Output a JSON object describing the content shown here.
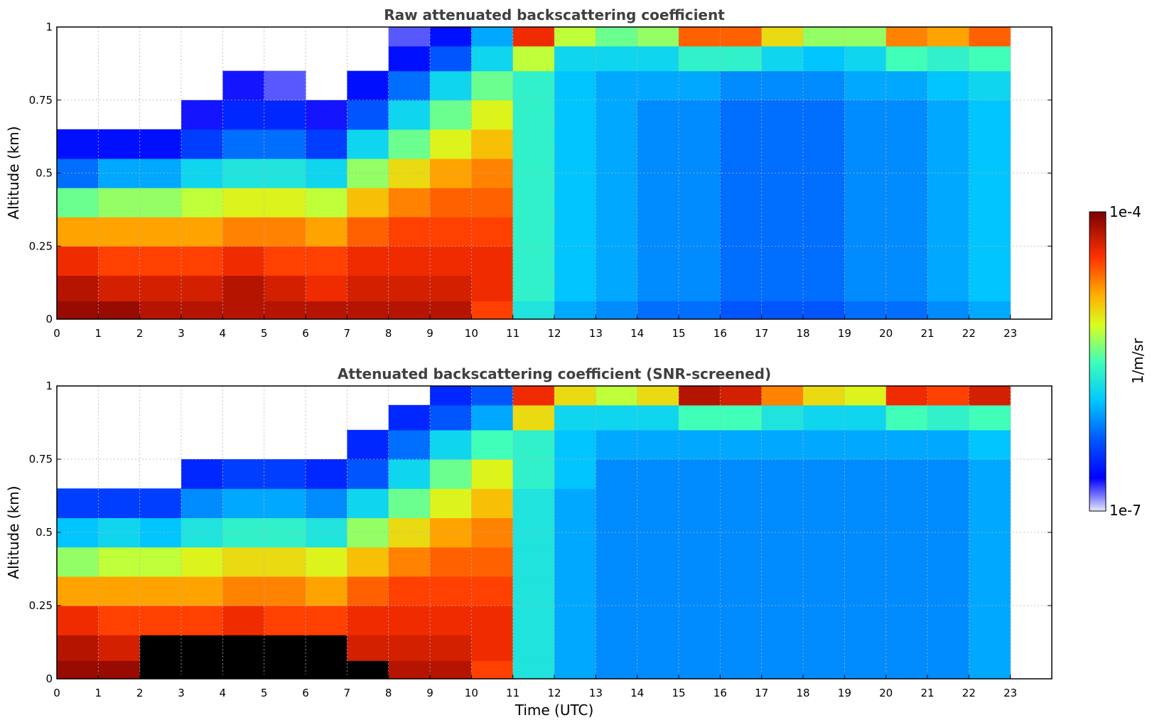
{
  "chart_data": [
    {
      "type": "heatmap",
      "title": "Raw attenuated backscattering coefficient",
      "xlabel": "",
      "ylabel": "Altitude (km)",
      "xlim": [
        0,
        24
      ],
      "ylim": [
        0,
        1
      ],
      "x_ticks": [
        "0",
        "1",
        "2",
        "3",
        "4",
        "5",
        "6",
        "7",
        "8",
        "9",
        "10",
        "11",
        "12",
        "13",
        "14",
        "15",
        "16",
        "17",
        "18",
        "19",
        "20",
        "21",
        "22",
        "23"
      ],
      "y_ticks": [
        "0",
        "0.25",
        "0.5",
        "0.75",
        "1"
      ],
      "grid": true,
      "data_extent_hours": [
        0,
        23
      ],
      "color_scale": "log",
      "color_range": [
        1e-07,
        0.0001
      ],
      "data_rows_altitude_km": [
        0.025,
        0.1,
        0.2,
        0.3,
        0.4,
        0.5,
        0.6,
        0.7,
        0.8,
        0.9,
        0.97
      ],
      "data_cols_hour": [
        0.5,
        1.5,
        2.5,
        3.5,
        4.5,
        5.5,
        6.5,
        7.5,
        8.5,
        9.5,
        10.5,
        11.5,
        12.5,
        13.5,
        14.5,
        15.5,
        16.5,
        17.5,
        18.5,
        19.5,
        20.5,
        21.5,
        22.5
      ],
      "log10_values": [
        [
          -4.1,
          -4.1,
          -4.2,
          -4.2,
          -4.2,
          -4.2,
          -4.2,
          -4.2,
          -4.2,
          -4.2,
          -4.5,
          -5.7,
          -6.0,
          -6.1,
          -6.2,
          -6.2,
          -6.3,
          -6.3,
          -6.3,
          -6.2,
          -6.2,
          -6.1,
          -6.0
        ],
        [
          -4.2,
          -4.3,
          -4.3,
          -4.3,
          -4.2,
          -4.3,
          -4.4,
          -4.3,
          -4.3,
          -4.3,
          -4.4,
          -5.6,
          -5.9,
          -6.0,
          -6.1,
          -6.1,
          -6.2,
          -6.2,
          -6.2,
          -6.1,
          -6.1,
          -6.0,
          -5.9
        ],
        [
          -4.4,
          -4.5,
          -4.5,
          -4.5,
          -4.4,
          -4.5,
          -4.5,
          -4.4,
          -4.4,
          -4.4,
          -4.4,
          -5.6,
          -5.9,
          -6.0,
          -6.1,
          -6.1,
          -6.2,
          -6.2,
          -6.2,
          -6.1,
          -6.1,
          -6.0,
          -5.9
        ],
        [
          -4.8,
          -4.8,
          -4.8,
          -4.8,
          -4.7,
          -4.7,
          -4.8,
          -4.6,
          -4.5,
          -4.5,
          -4.5,
          -5.6,
          -5.9,
          -6.0,
          -6.1,
          -6.1,
          -6.2,
          -6.2,
          -6.2,
          -6.1,
          -6.1,
          -6.0,
          -5.9
        ],
        [
          -5.4,
          -5.3,
          -5.3,
          -5.2,
          -5.1,
          -5.1,
          -5.2,
          -4.9,
          -4.7,
          -4.6,
          -4.6,
          -5.6,
          -5.9,
          -6.0,
          -6.1,
          -6.1,
          -6.2,
          -6.2,
          -6.2,
          -6.1,
          -6.1,
          -6.0,
          -5.9
        ],
        [
          -6.2,
          -6.0,
          -6.0,
          -5.8,
          -5.7,
          -5.7,
          -5.8,
          -5.3,
          -5.0,
          -4.8,
          -4.7,
          -5.6,
          -5.9,
          -6.0,
          -6.1,
          -6.1,
          -6.2,
          -6.2,
          -6.2,
          -6.1,
          -6.1,
          -6.0,
          -5.9
        ],
        [
          -6.6,
          -6.6,
          -6.6,
          -6.4,
          -6.2,
          -6.2,
          -6.4,
          -5.8,
          -5.4,
          -5.1,
          -4.9,
          -5.6,
          -5.9,
          -6.0,
          -6.1,
          -6.1,
          -6.2,
          -6.2,
          -6.2,
          -6.1,
          -6.1,
          -6.0,
          -5.9
        ],
        [
          null,
          null,
          null,
          -6.7,
          -6.5,
          -6.5,
          -6.7,
          -6.3,
          -5.8,
          -5.4,
          -5.1,
          -5.6,
          -5.9,
          -6.0,
          -6.1,
          -6.1,
          -6.2,
          -6.2,
          -6.2,
          -6.1,
          -6.1,
          -6.0,
          -5.9
        ],
        [
          null,
          null,
          null,
          null,
          -6.7,
          -6.8,
          null,
          -6.6,
          -6.2,
          -5.8,
          -5.4,
          -5.6,
          -5.9,
          -6.0,
          -6.0,
          -6.0,
          -6.1,
          -6.1,
          -6.1,
          -6.0,
          -6.0,
          -5.9,
          -5.8
        ],
        [
          null,
          null,
          null,
          null,
          null,
          null,
          null,
          null,
          -6.6,
          -6.3,
          -5.8,
          -5.2,
          -5.8,
          -5.8,
          -5.8,
          -5.6,
          -5.6,
          -5.8,
          -5.9,
          -5.8,
          -5.5,
          -5.6,
          -5.5
        ],
        [
          null,
          null,
          null,
          null,
          null,
          null,
          null,
          null,
          -6.8,
          -6.6,
          -6.0,
          -4.4,
          -5.2,
          -5.4,
          -5.3,
          -4.6,
          -4.6,
          -5.0,
          -5.3,
          -5.3,
          -4.7,
          -4.8,
          -4.6
        ]
      ]
    },
    {
      "type": "heatmap",
      "title": "Attenuated backscattering coefficient (SNR-screened)",
      "xlabel": "Time (UTC)",
      "ylabel": "Altitude (km)",
      "xlim": [
        0,
        24
      ],
      "ylim": [
        0,
        1
      ],
      "x_ticks": [
        "0",
        "1",
        "2",
        "3",
        "4",
        "5",
        "6",
        "7",
        "8",
        "9",
        "10",
        "11",
        "12",
        "13",
        "14",
        "15",
        "16",
        "17",
        "18",
        "19",
        "20",
        "21",
        "22",
        "23"
      ],
      "y_ticks": [
        "0",
        "0.25",
        "0.5",
        "0.75",
        "1"
      ],
      "grid": true,
      "data_extent_hours": [
        0,
        23
      ],
      "color_scale": "log",
      "color_range": [
        1e-07,
        0.0001
      ],
      "data_rows_altitude_km": [
        0.025,
        0.1,
        0.2,
        0.3,
        0.4,
        0.5,
        0.6,
        0.7,
        0.8,
        0.9,
        0.97
      ],
      "data_cols_hour": [
        0.5,
        1.5,
        2.5,
        3.5,
        4.5,
        5.5,
        6.5,
        7.5,
        8.5,
        9.5,
        10.5,
        11.5,
        12.5,
        13.5,
        14.5,
        15.5,
        16.5,
        17.5,
        18.5,
        19.5,
        20.5,
        21.5,
        22.5
      ],
      "log10_values": [
        [
          -4.1,
          -4.1,
          "masked",
          "masked",
          "masked",
          "masked",
          "masked",
          "masked",
          -4.2,
          -4.2,
          -4.5,
          -5.7,
          -6.0,
          -6.1,
          -6.1,
          -6.1,
          -6.1,
          -6.1,
          -6.1,
          -6.1,
          -6.1,
          -6.1,
          -6.0
        ],
        [
          -4.2,
          -4.3,
          "masked",
          "masked",
          "masked",
          "masked",
          "masked",
          -4.3,
          -4.3,
          -4.3,
          -4.4,
          -5.7,
          -6.0,
          -6.1,
          -6.1,
          -6.1,
          -6.1,
          -6.1,
          -6.1,
          -6.1,
          -6.1,
          -6.1,
          -6.0
        ],
        [
          -4.4,
          -4.5,
          -4.5,
          -4.5,
          -4.4,
          -4.5,
          -4.5,
          -4.4,
          -4.4,
          -4.4,
          -4.4,
          -5.7,
          -6.0,
          -6.1,
          -6.1,
          -6.1,
          -6.1,
          -6.1,
          -6.1,
          -6.1,
          -6.1,
          -6.1,
          -6.0
        ],
        [
          -4.8,
          -4.8,
          -4.8,
          -4.8,
          -4.7,
          -4.7,
          -4.8,
          -4.6,
          -4.5,
          -4.5,
          -4.5,
          -5.7,
          -6.0,
          -6.1,
          -6.1,
          -6.1,
          -6.1,
          -6.1,
          -6.1,
          -6.1,
          -6.1,
          -6.1,
          -6.0
        ],
        [
          -5.3,
          -5.2,
          -5.2,
          -5.1,
          -5.0,
          -5.0,
          -5.1,
          -4.9,
          -4.7,
          -4.6,
          -4.6,
          -5.7,
          -6.0,
          -6.1,
          -6.1,
          -6.1,
          -6.1,
          -6.1,
          -6.1,
          -6.1,
          -6.1,
          -6.1,
          -6.0
        ],
        [
          -5.9,
          -5.8,
          -5.9,
          -5.7,
          -5.6,
          -5.6,
          -5.7,
          -5.3,
          -5.0,
          -4.8,
          -4.7,
          -5.7,
          -6.0,
          -6.1,
          -6.1,
          -6.1,
          -6.1,
          -6.1,
          -6.1,
          -6.1,
          -6.1,
          -6.1,
          -6.0
        ],
        [
          -6.4,
          -6.4,
          -6.4,
          -6.1,
          -6.0,
          -6.0,
          -6.1,
          -5.8,
          -5.4,
          -5.1,
          -4.9,
          -5.7,
          -6.0,
          -6.1,
          -6.1,
          -6.1,
          -6.1,
          -6.1,
          -6.1,
          -6.1,
          -6.1,
          -6.1,
          -6.0
        ],
        [
          null,
          null,
          null,
          -6.5,
          -6.4,
          -6.4,
          -6.5,
          -6.3,
          -5.8,
          -5.4,
          -5.1,
          -5.6,
          -5.9,
          -6.1,
          -6.1,
          -6.1,
          -6.1,
          -6.1,
          -6.1,
          -6.1,
          -6.1,
          -6.1,
          -6.0
        ],
        [
          null,
          null,
          null,
          null,
          null,
          null,
          null,
          -6.5,
          -6.2,
          -5.8,
          -5.5,
          -5.6,
          -5.9,
          -6.0,
          -6.0,
          -6.0,
          -6.0,
          -6.0,
          -6.0,
          -6.0,
          -6.0,
          -6.0,
          -5.9
        ],
        [
          null,
          null,
          null,
          null,
          null,
          null,
          null,
          null,
          -6.5,
          -6.3,
          -6.0,
          -5.0,
          -5.8,
          -5.8,
          -5.8,
          -5.5,
          -5.5,
          -5.7,
          -5.8,
          -5.8,
          -5.5,
          -5.6,
          -5.5
        ],
        [
          null,
          null,
          null,
          null,
          null,
          null,
          null,
          null,
          null,
          -6.5,
          -6.3,
          -4.4,
          -5.0,
          -5.2,
          -5.0,
          -4.2,
          -4.3,
          -4.7,
          -5.0,
          -5.1,
          -4.4,
          -4.5,
          -4.3
        ]
      ]
    }
  ],
  "colorbar": {
    "max_label": "1e-4",
    "min_label": "1e-7",
    "units_label": "1/m/sr",
    "colormap": "jet"
  }
}
